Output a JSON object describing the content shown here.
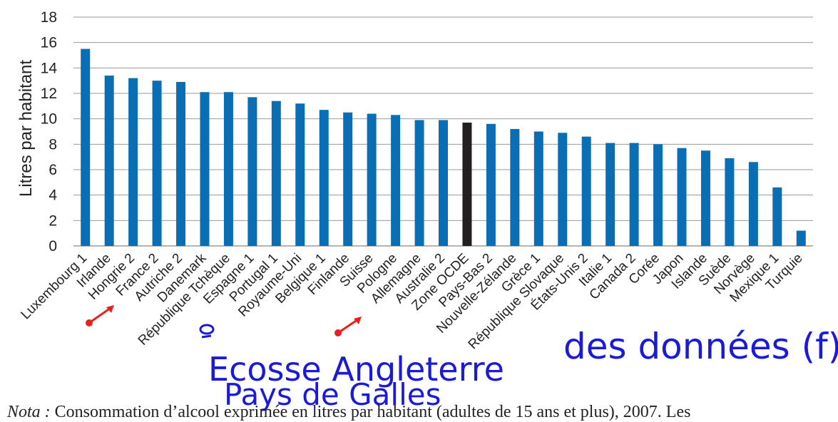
{
  "chart_data": {
    "type": "bar",
    "ylabel": "Litres par habitant",
    "ylim": [
      0,
      18
    ],
    "yticks": [
      0,
      2,
      4,
      6,
      8,
      10,
      12,
      14,
      16,
      18
    ],
    "grid": true,
    "categories": [
      "Luxembourg 1",
      "Irlande",
      "Hongrie 2",
      "France 2",
      "Autriche 2",
      "Danemark",
      "République Tchèque",
      "Espagne 1",
      "Portugal 1",
      "Royaume-Uni",
      "Belgique 1",
      "Finlande",
      "Suisse",
      "Pologne",
      "Allemagne",
      "Australie 2",
      "Zone OCDE",
      "Pays-Bas 2",
      "Nouvelle-Zélande",
      "Grèce 1",
      "République Slovaque",
      "États-Unis 2",
      "Italie 1",
      "Canada 2",
      "Corée",
      "Japon",
      "Islande",
      "Suède",
      "Norvège",
      "Mexique 1",
      "Turquie"
    ],
    "values": [
      15.5,
      13.4,
      13.2,
      13.0,
      12.9,
      12.1,
      12.1,
      11.7,
      11.4,
      11.2,
      10.7,
      10.5,
      10.4,
      10.3,
      9.9,
      9.9,
      9.7,
      9.6,
      9.2,
      9.0,
      8.9,
      8.6,
      8.1,
      8.1,
      8.0,
      7.7,
      7.5,
      6.9,
      6.6,
      4.6,
      1.2
    ],
    "highlight_category": "Zone OCDE",
    "colors": {
      "bar": "#0a6eb4",
      "highlight": "#231f20",
      "grid": "#9a9a9a"
    }
  },
  "annotations": {
    "arrow_color": "#e8201f",
    "handwriting_color": "#1a1ad8",
    "handwritten_note_1": "des données (f)",
    "handwritten_note_2": "Ecosse Angleterre",
    "handwritten_note_3": "Pays de Galles"
  },
  "footnote": {
    "lead": "Nota :",
    "text": " Consommation d’alcool exprimée en litres par habitant (adultes de 15 ans et plus), 2007. Les"
  }
}
